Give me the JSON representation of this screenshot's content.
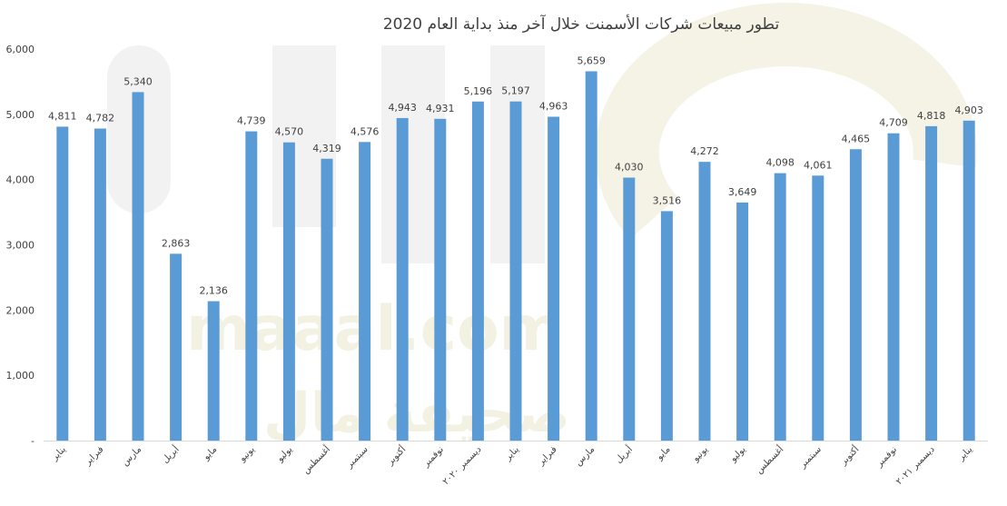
{
  "chart_data": {
    "type": "bar",
    "title": "تطور مبيعات شركات الأسمنت خلال آخر منذ بداية العام 2020",
    "xlabel": "",
    "ylabel": "",
    "ylim": [
      0,
      6000
    ],
    "yticks": [
      "-",
      "1,000",
      "2,000",
      "3,000",
      "4,000",
      "5,000",
      "6,000"
    ],
    "grid": false,
    "legend": "none",
    "bar_color": "#5b9bd5",
    "categories": [
      "يناير",
      "فبراير",
      "مارس",
      "أبريل",
      "مايو",
      "يونيو",
      "يوليو",
      "أغسطس",
      "سبتمبر",
      "أكتوبر",
      "نوفمبر",
      "ديسمبر ٢٠٢٠",
      "يناير",
      "فبراير",
      "مارس",
      "أبريل",
      "مايو",
      "يونيو",
      "يوليو",
      "أغسطس",
      "سبتمبر",
      "أكتوبر",
      "نوفمبر",
      "ديسمبر ٢٠٢١",
      "يناير"
    ],
    "values": [
      4811,
      4782,
      5340,
      2863,
      2136,
      4739,
      4570,
      4319,
      4576,
      4943,
      4931,
      5196,
      5197,
      4963,
      5659,
      4030,
      3516,
      4272,
      3649,
      4098,
      4061,
      4465,
      4709,
      4818,
      4903
    ],
    "data_labels": [
      "4,811",
      "4,782",
      "5,340",
      "2,863",
      "2,136",
      "4,739",
      "4,570",
      "4,319",
      "4,576",
      "4,943",
      "4,931",
      "5,196",
      "5,197",
      "4,963",
      "5,659",
      "4,030",
      "3,516",
      "4,272",
      "3,649",
      "4,098",
      "4,061",
      "4,465",
      "4,709",
      "4,818",
      "4,903"
    ]
  },
  "watermark": {
    "text": "maaal.com",
    "arabic_text": "صحيفة مال"
  }
}
